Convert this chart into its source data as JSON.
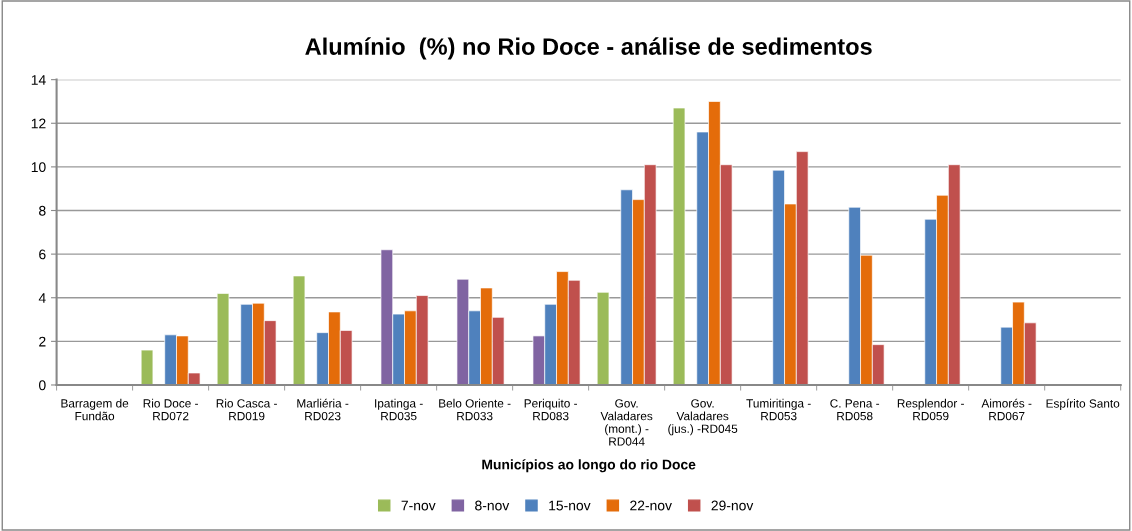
{
  "chart_data": {
    "type": "bar",
    "title": "Alumínio  (%) no Rio Doce - análise de sedimentos",
    "xlabel": "Municípios ao longo do rio Doce",
    "categories": [
      "Barragem de\nFundão",
      "Rio Doce -\nRD072",
      "Rio Casca -\nRD019",
      "Marliéria -\nRD023",
      "Ipatinga -\nRD035",
      "Belo Oriente -\nRD033",
      "Periquito -\nRD083",
      "Gov.\nValadares\n(mont.) -\nRD044",
      "Gov.\nValadares\n(jus.) -RD045",
      "Tumiritinga -\nRD053",
      "C. Pena -\nRD058",
      "Resplendor -\nRD059",
      "Aimorés -\nRD067",
      "Espírito Santo"
    ],
    "series": [
      {
        "name": "7-nov",
        "color": "#9bbb59",
        "values": [
          null,
          1.6,
          4.2,
          5.0,
          null,
          null,
          null,
          4.25,
          12.7,
          null,
          null,
          null,
          null,
          null
        ]
      },
      {
        "name": "8-nov",
        "color": "#8064a2",
        "values": [
          null,
          null,
          null,
          null,
          6.2,
          4.85,
          2.25,
          null,
          null,
          null,
          null,
          null,
          null,
          null
        ]
      },
      {
        "name": "15-nov",
        "color": "#4f81bd",
        "values": [
          null,
          2.3,
          3.7,
          2.4,
          3.25,
          3.4,
          3.7,
          8.95,
          11.6,
          9.85,
          8.15,
          7.6,
          2.65,
          null
        ]
      },
      {
        "name": "22-nov",
        "color": "#e46c0a",
        "values": [
          null,
          2.25,
          3.75,
          3.35,
          3.4,
          4.45,
          5.2,
          8.5,
          13.0,
          8.3,
          5.95,
          8.7,
          3.8,
          null
        ]
      },
      {
        "name": "29-nov",
        "color": "#c0504d",
        "values": [
          null,
          0.55,
          2.95,
          2.5,
          4.1,
          3.1,
          4.8,
          10.1,
          10.1,
          10.7,
          1.85,
          10.1,
          2.85,
          null
        ]
      }
    ],
    "ylim": [
      0,
      14
    ],
    "yticks": [
      0,
      2,
      4,
      6,
      8,
      10,
      12,
      14
    ],
    "grid": "y",
    "legend": "bottom"
  }
}
